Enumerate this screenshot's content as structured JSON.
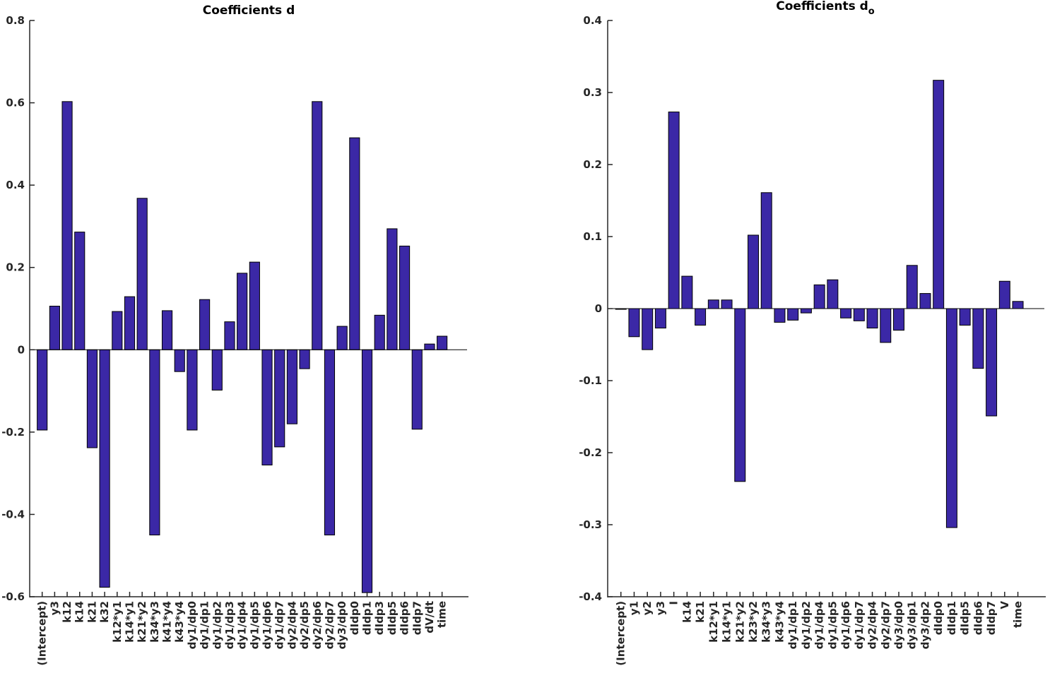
{
  "chart_data": [
    {
      "type": "bar",
      "title": "Coefficients d",
      "ylim": [
        -0.6,
        0.8
      ],
      "yticks": [
        -0.6,
        -0.4,
        -0.2,
        0,
        0.2,
        0.4,
        0.6,
        0.8
      ],
      "ytick_labels": [
        "-0.6",
        "-0.4",
        "-0.2",
        "0",
        "0.2",
        "0.4",
        "0.6",
        "0.8"
      ],
      "bar_color": "#3b28a6",
      "categories": [
        "(Intercept)",
        "y3",
        "k12",
        "k14",
        "k21",
        "k32",
        "k12*y1",
        "k14*y1",
        "k21*y2",
        "k34*y3",
        "k41*y4",
        "k43*y4",
        "dy1/dp0",
        "dy1/dp1",
        "dy1/dp2",
        "dy1/dp3",
        "dy1/dp4",
        "dy1/dp5",
        "dy1/dp6",
        "dy1/dp7",
        "dy2/dp4",
        "dy2/dp5",
        "dy2/dp6",
        "dy2/dp7",
        "dy3/dp0",
        "dIdp0",
        "dIdp1",
        "dIdp3",
        "dIdp5",
        "dIdp6",
        "dIdp7",
        "dV/dt",
        "time"
      ],
      "values": [
        -0.195,
        0.106,
        0.603,
        0.286,
        -0.238,
        -0.577,
        0.093,
        0.129,
        0.368,
        -0.45,
        0.095,
        -0.053,
        -0.195,
        0.122,
        -0.098,
        0.068,
        0.186,
        0.213,
        -0.28,
        -0.236,
        -0.18,
        -0.046,
        0.603,
        -0.45,
        0.057,
        0.515,
        -0.59,
        0.084,
        0.294,
        0.252,
        -0.193,
        0.014,
        0.033
      ]
    },
    {
      "type": "bar",
      "title": "Coefficients d",
      "title_subscript": "o",
      "ylim": [
        -0.4,
        0.4
      ],
      "yticks": [
        -0.4,
        -0.3,
        -0.2,
        -0.1,
        0,
        0.1,
        0.2,
        0.3,
        0.4
      ],
      "ytick_labels": [
        "-0.4",
        "-0.3",
        "-0.2",
        "-0.1",
        "0",
        "0.1",
        "0.2",
        "0.3",
        "0.4"
      ],
      "bar_color": "#3b28a6",
      "categories": [
        "(Intercept)",
        "y1",
        "y2",
        "y3",
        "I",
        "k14",
        "k21",
        "k12*y1",
        "k14*y1",
        "k21*y2",
        "k23*y2",
        "k34*y3",
        "k43*y4",
        "dy1/dp1",
        "dy1/dp2",
        "dy1/dp4",
        "dy1/dp5",
        "dy1/dp6",
        "dy1/dp7",
        "dy2/dp4",
        "dy2/dp7",
        "dy3/dp0",
        "dy3/dp1",
        "dy3/dp2",
        "dIdp0",
        "dIdp1",
        "dIdp5",
        "dIdp6",
        "dIdp7",
        "V",
        "time"
      ],
      "values": [
        -0.001,
        -0.039,
        -0.057,
        -0.027,
        0.273,
        0.045,
        -0.023,
        0.012,
        0.012,
        -0.24,
        0.102,
        0.161,
        -0.019,
        -0.016,
        -0.006,
        0.033,
        0.04,
        -0.013,
        -0.017,
        -0.027,
        -0.047,
        -0.03,
        0.06,
        0.021,
        0.317,
        -0.304,
        -0.023,
        -0.083,
        -0.149,
        0.038,
        0.01
      ]
    }
  ]
}
